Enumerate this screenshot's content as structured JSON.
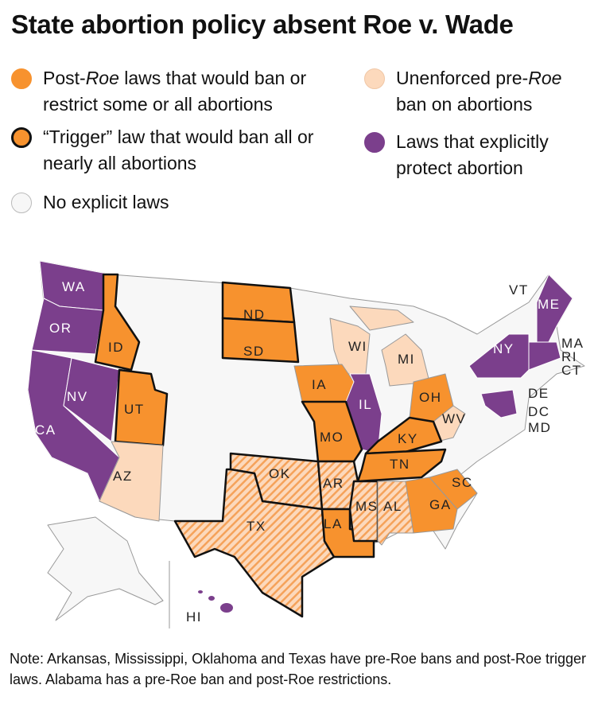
{
  "title": "State abortion policy absent Roe v. Wade",
  "legend": [
    {
      "parts": [
        "Post-",
        "Roe",
        " laws that would ban or restrict some or all abortions"
      ]
    },
    {
      "parts": [
        "Unenforced pre-",
        "Roe",
        " ban on abortions"
      ]
    },
    {
      "text": "“Trigger” law that would ban all or nearly all abortions"
    },
    {
      "text": "Laws that explicitly protect abortion"
    },
    {
      "text": "No explicit laws"
    }
  ],
  "states": [
    "WA",
    "OR",
    "CA",
    "NV",
    "ID",
    "UT",
    "AZ",
    "ND",
    "SD",
    "WI",
    "MI",
    "IA",
    "IL",
    "MO",
    "OH",
    "WV",
    "KY",
    "TN",
    "OK",
    "TX",
    "AR",
    "LA",
    "MS",
    "AL",
    "GA",
    "SC",
    "NY",
    "VT",
    "ME",
    "MA",
    "RI",
    "CT",
    "DE",
    "DC",
    "MD",
    "HI"
  ],
  "note": "Note: Arkansas, Mississippi, Oklahoma and Texas have pre-Roe bans and post-Roe trigger laws. Alabama has a pre-Roe ban and post-Roe restrictions."
}
